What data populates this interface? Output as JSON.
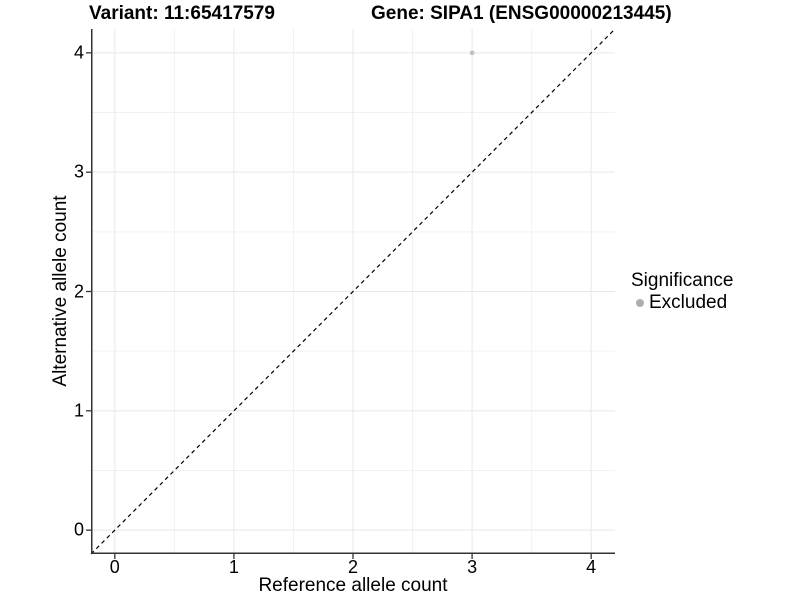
{
  "header": {
    "variant_title": "Variant: 11:65417579",
    "gene_title": "Gene: SIPA1 (ENSG00000213445)"
  },
  "chart_data": {
    "type": "scatter",
    "title_left": "Variant: 11:65417579",
    "title_right": "Gene: SIPA1 (ENSG00000213445)",
    "xlabel": "Reference allele count",
    "ylabel": "Alternative allele count",
    "xlim": [
      -0.2,
      4.2
    ],
    "ylim": [
      -0.2,
      4.2
    ],
    "xticks": [
      0,
      1,
      2,
      3,
      4
    ],
    "yticks": [
      0,
      1,
      2,
      3,
      4
    ],
    "minor_xticks": [
      0.5,
      1.5,
      2.5,
      3.5
    ],
    "minor_yticks": [
      0.5,
      1.5,
      2.5,
      3.5
    ],
    "grid": "major+minor",
    "points": [
      {
        "x": 3,
        "y": 4,
        "significance": "Excluded"
      }
    ],
    "identity_line": {
      "slope": 1,
      "intercept": 0,
      "style": "dashed",
      "color": "#000000"
    },
    "legend": {
      "title": "Significance",
      "position": "right",
      "entries": [
        {
          "label": "Excluded",
          "color": "#aeaeae"
        }
      ]
    }
  },
  "colors": {
    "point": "#c2c2c2",
    "grid_major": "#e8e8e8",
    "grid_minor": "#f2f2f2",
    "axis_line": "#333333",
    "tick_mark": "#333333",
    "text": "#000000"
  }
}
